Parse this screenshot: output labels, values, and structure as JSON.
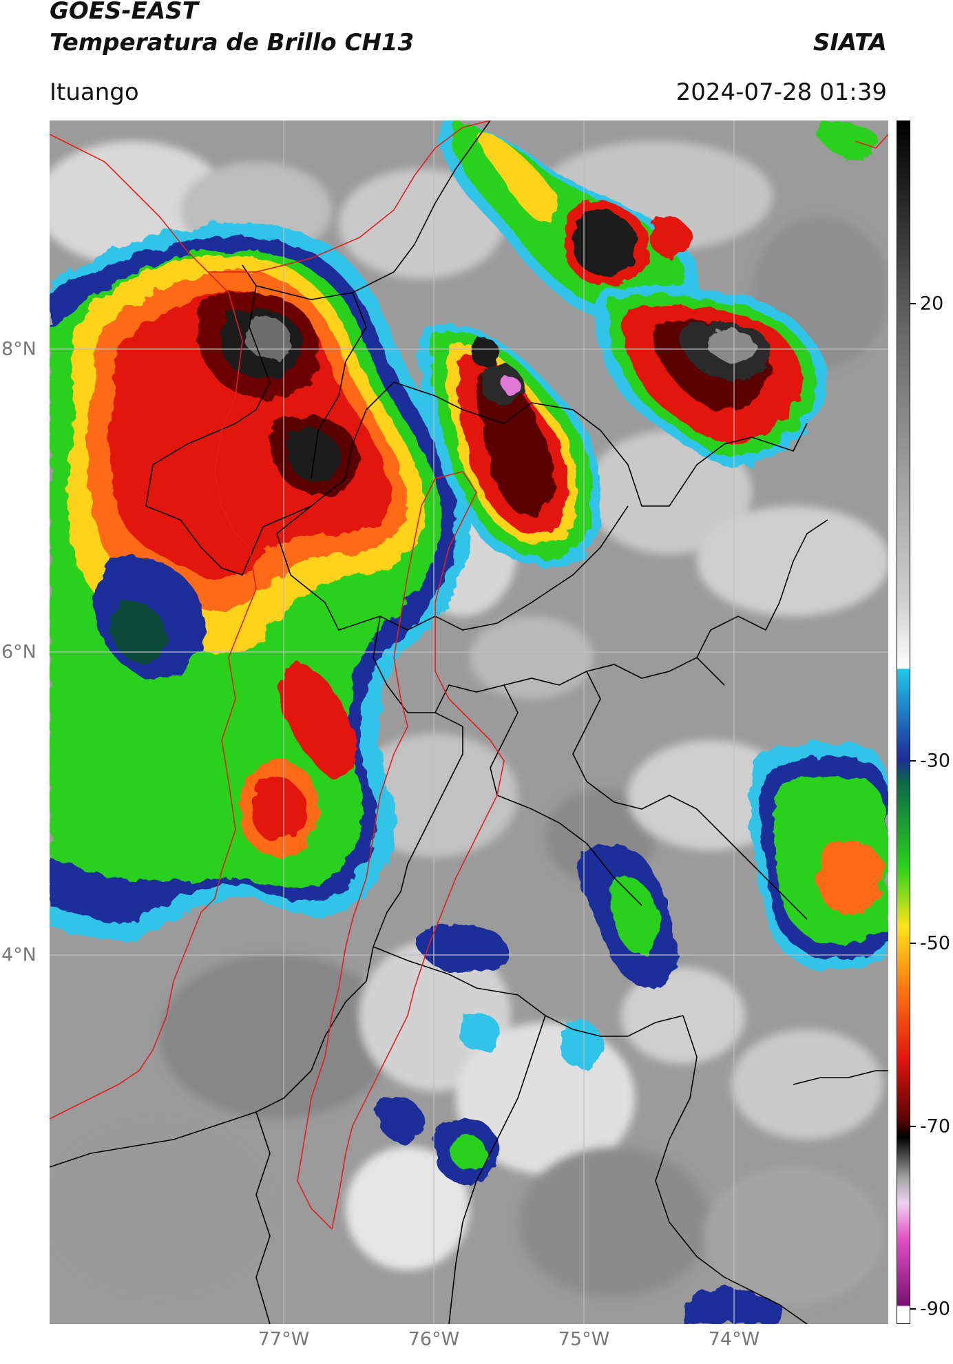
{
  "header": {
    "product_line1": "GOES-EAST",
    "product_line2": "Temperatura de Brillo CH13",
    "agency": "SIATA",
    "location": "Ituango",
    "timestamp": "2024-07-28 01:39"
  },
  "map": {
    "lat_labels": [
      {
        "text": "8°N",
        "lat": 8
      },
      {
        "text": "6°N",
        "lat": 6
      },
      {
        "text": "4°N",
        "lat": 4
      }
    ],
    "lon_labels": [
      {
        "text": "77°W",
        "lon": -77
      },
      {
        "text": "76°W",
        "lon": -76
      },
      {
        "text": "75°W",
        "lon": -75
      },
      {
        "text": "74°W",
        "lon": -74
      }
    ],
    "grid": true,
    "colors": {
      "background_cloud": "#9a9a9a",
      "department_borders": "#000000",
      "coastline_and_region": "#e0201e",
      "gridlines": "#bfbfbf"
    }
  },
  "colorbar": {
    "ticks": [
      {
        "label": "20",
        "value": 20
      },
      {
        "label": "-30",
        "value": -30
      },
      {
        "label": "-50",
        "value": -50
      },
      {
        "label": "-70",
        "value": -70
      },
      {
        "label": "-90",
        "value": -90
      }
    ]
  }
}
